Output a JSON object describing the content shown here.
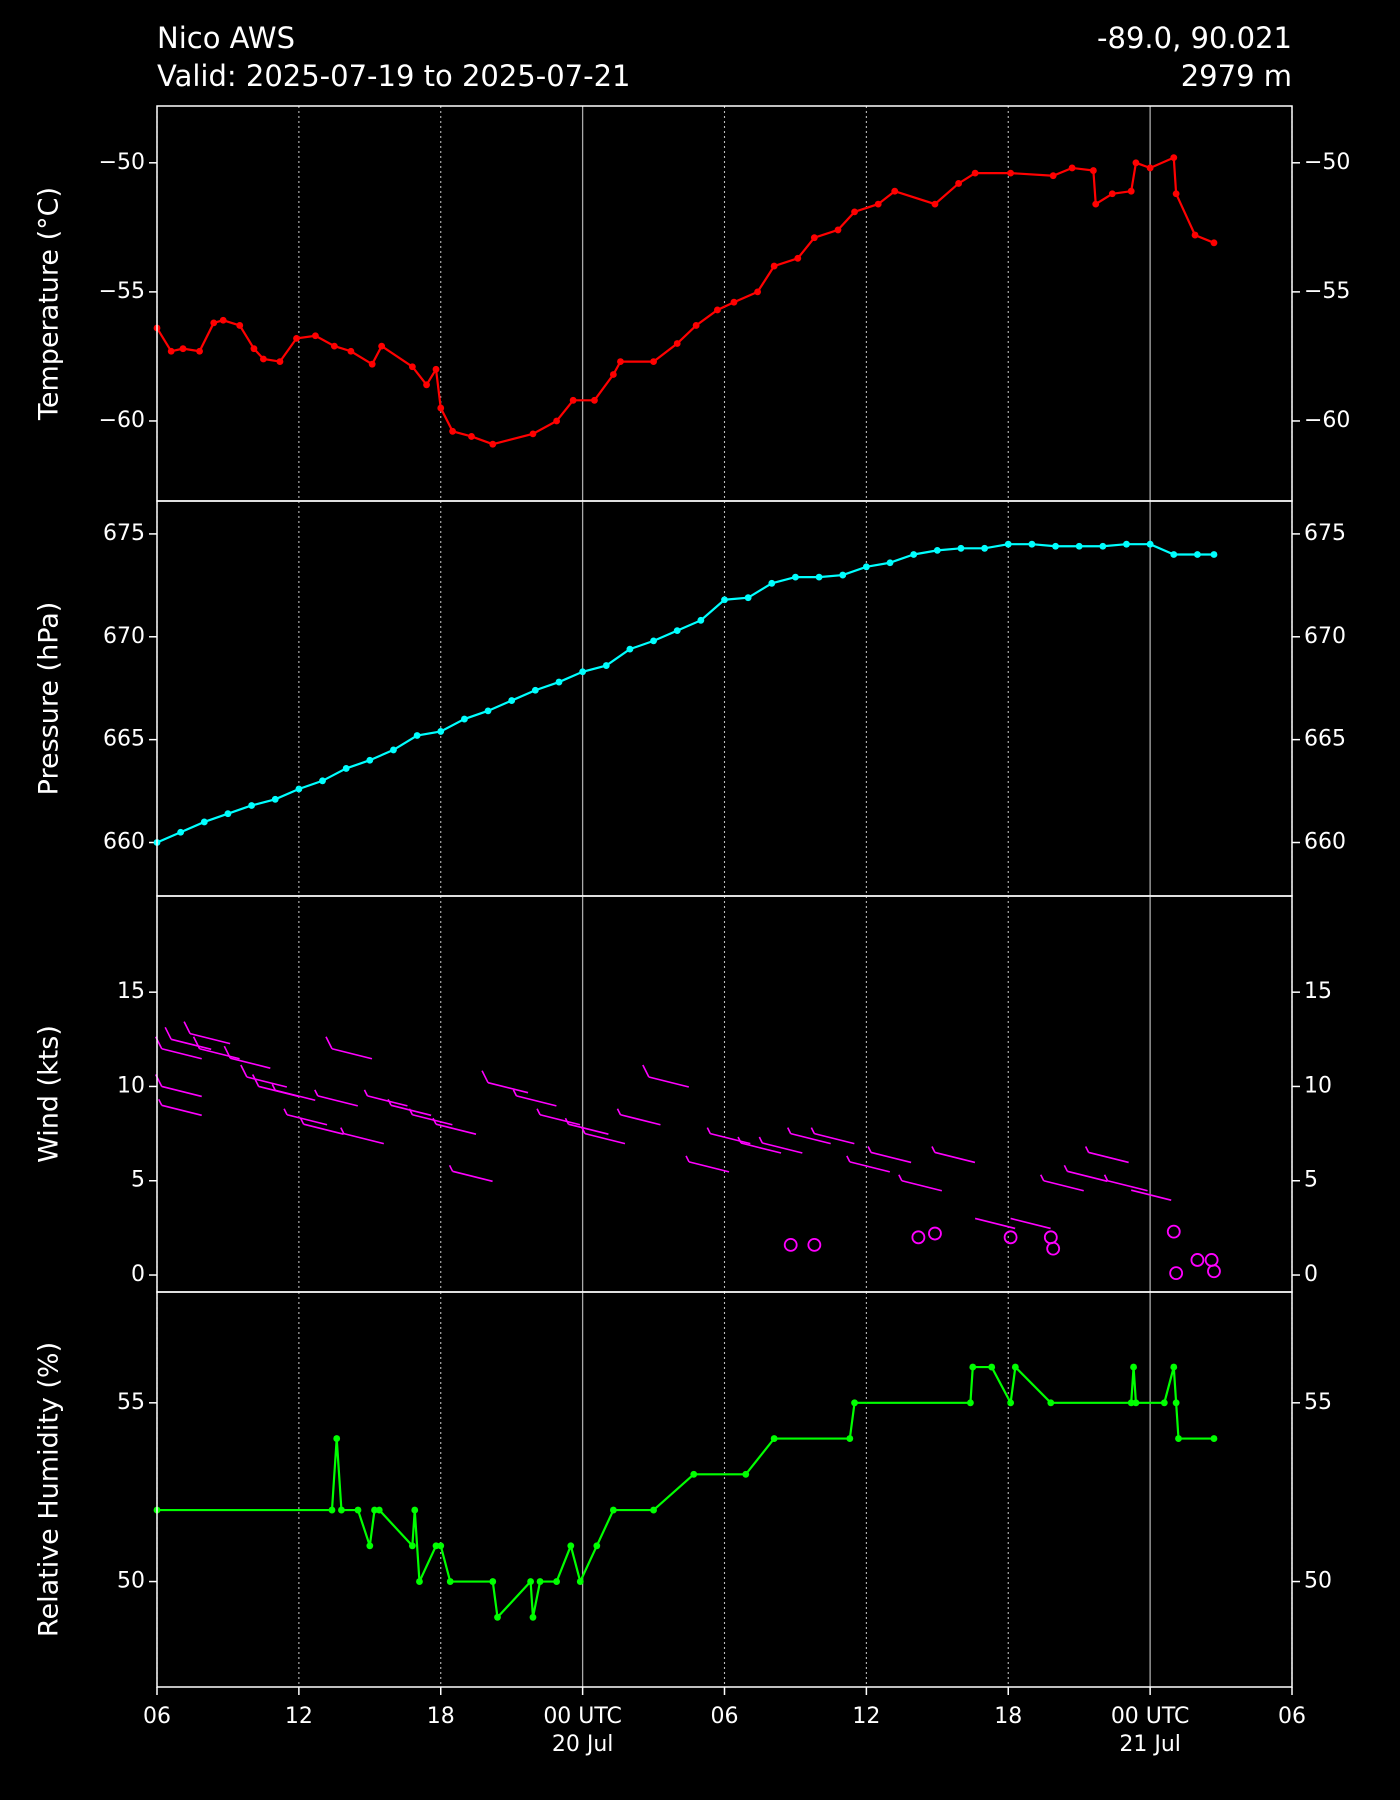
{
  "header": {
    "title": "Nico AWS",
    "subtitle": "Valid: 2025-07-19 to 2025-07-21",
    "location": "-89.0, 90.021",
    "elevation": "2979 m"
  },
  "x_axis": {
    "xlim": [
      0,
      48
    ],
    "grid": true,
    "xticks": [
      {
        "value": 0,
        "label": "06"
      },
      {
        "value": 6,
        "label": "12"
      },
      {
        "value": 12,
        "label": "18"
      },
      {
        "value": 18,
        "label": "00 UTC",
        "sublabel": "20 Jul"
      },
      {
        "value": 24,
        "label": "06"
      },
      {
        "value": 30,
        "label": "12"
      },
      {
        "value": 36,
        "label": "18"
      },
      {
        "value": 42,
        "label": "00 UTC",
        "sublabel": "21 Jul"
      },
      {
        "value": 48,
        "label": "06"
      }
    ]
  },
  "chart_data": [
    {
      "type": "line",
      "ylabel": "Temperature (°C)",
      "ylim": [
        -63.1,
        -47.8
      ],
      "yticks": [
        {
          "value": -60,
          "label": "−60"
        },
        {
          "value": -55,
          "label": "−55"
        },
        {
          "value": -50,
          "label": "−50"
        }
      ],
      "x": [
        0,
        0.6,
        1.1,
        1.8,
        2.4,
        2.8,
        3.5,
        4.1,
        4.5,
        5.2,
        5.9,
        6.7,
        7.5,
        8.2,
        9.1,
        9.5,
        10.8,
        11.4,
        11.8,
        12.0,
        12.5,
        13.3,
        14.2,
        15.9,
        16.9,
        17.6,
        18.5,
        19.3,
        19.6,
        21.0,
        22.0,
        22.8,
        23.7,
        24.4,
        25.4,
        26.1,
        27.1,
        27.8,
        28.8,
        29.5,
        30.5,
        31.2,
        32.9,
        33.9,
        34.6,
        36.1,
        37.9,
        38.7,
        39.6,
        39.7,
        40.4,
        41.2,
        41.4,
        42.0,
        43.0,
        43.1,
        43.9,
        44.7
      ],
      "series": [
        {
          "name": "Temperature",
          "color": "#ff0000",
          "values": [
            -56.4,
            -57.3,
            -57.2,
            -57.3,
            -56.2,
            -56.1,
            -56.3,
            -57.2,
            -57.6,
            -57.7,
            -56.8,
            -56.7,
            -57.1,
            -57.3,
            -57.8,
            -57.1,
            -57.9,
            -58.6,
            -58.0,
            -59.5,
            -60.4,
            -60.6,
            -60.9,
            -60.5,
            -60.0,
            -59.2,
            -59.2,
            -58.2,
            -57.7,
            -57.7,
            -57.0,
            -56.3,
            -55.7,
            -55.4,
            -55.0,
            -54.0,
            -53.7,
            -52.9,
            -52.6,
            -51.9,
            -51.6,
            -51.1,
            -51.6,
            -50.8,
            -50.4,
            -50.4,
            -50.5,
            -50.2,
            -50.3,
            -51.6,
            -51.2,
            -51.1,
            -50.0,
            -50.2,
            -49.8,
            -51.2,
            -52.8,
            -53.1
          ]
        }
      ]
    },
    {
      "type": "line",
      "ylabel": "Pressure (hPa)",
      "ylim": [
        657.4,
        676.6
      ],
      "yticks": [
        660,
        665,
        670,
        675
      ],
      "x": [
        0,
        1,
        2,
        3,
        4,
        5,
        6,
        7,
        8,
        9,
        10,
        11,
        12,
        13,
        14,
        15,
        16,
        17,
        18,
        19,
        20,
        21,
        22,
        23,
        24,
        25,
        26,
        27,
        28,
        29,
        30,
        31,
        32,
        33,
        34,
        35,
        36,
        37,
        38,
        39,
        40,
        41,
        42,
        43,
        44,
        44.7
      ],
      "series": [
        {
          "name": "Pressure",
          "color": "#00ffff",
          "values": [
            660.0,
            660.5,
            661.0,
            661.4,
            661.8,
            662.1,
            662.6,
            663.0,
            663.6,
            664.0,
            664.5,
            665.2,
            665.4,
            666.0,
            666.4,
            666.9,
            667.4,
            667.8,
            668.3,
            668.6,
            669.4,
            669.8,
            670.3,
            670.8,
            671.8,
            671.9,
            672.6,
            672.9,
            672.9,
            673.0,
            673.4,
            673.6,
            674.0,
            674.2,
            674.3,
            674.3,
            674.5,
            674.5,
            674.4,
            674.4,
            674.4,
            674.5,
            674.5,
            674.0,
            674.0,
            674.0
          ]
        }
      ]
    },
    {
      "type": "barbs",
      "ylabel": "Wind (kts)",
      "ylim": [
        -0.9,
        20.1
      ],
      "yticks": [
        0,
        5,
        10,
        15
      ],
      "x": [
        0.2,
        0.2,
        0.2,
        0.6,
        1.4,
        1.8,
        3.1,
        3.8,
        4.3,
        5.0,
        5.5,
        6.2,
        6.8,
        7.4,
        7.9,
        8.9,
        9.9,
        10.8,
        11.8,
        12.5,
        14.0,
        15.2,
        16.2,
        17.4,
        18.1,
        19.6,
        20.8,
        22.5,
        23.4,
        24.7,
        25.6,
        26.8,
        26.8,
        27.8,
        27.8,
        29.3,
        30.2,
        31.5,
        32.2,
        32.9,
        32.9,
        34.6,
        36.1,
        36.1,
        37.5,
        37.8,
        37.9,
        38.5,
        39.4,
        40.2,
        41.2,
        43.0,
        43.1,
        44.0,
        44.6,
        44.7
      ],
      "series": [
        {
          "name": "Wind",
          "color": "#ff00ff",
          "values": [
            9,
            10,
            12,
            12.5,
            12.8,
            12,
            11.5,
            10.5,
            10,
            9.8,
            8.5,
            8,
            9.5,
            12,
            7.5,
            9.5,
            9,
            8.5,
            8,
            5.5,
            10.2,
            9.5,
            8.5,
            8,
            7.5,
            8.5,
            10.5,
            6,
            7.5,
            7,
            7,
            1.6,
            7.5,
            1.6,
            7.5,
            6,
            6.5,
            5,
            2,
            2.2,
            6.5,
            3,
            2,
            3,
            5,
            2,
            1.4,
            5.5,
            6.5,
            5,
            4.5,
            2.3,
            0.1,
            0.8,
            0.8,
            0.2
          ]
        }
      ]
    },
    {
      "type": "line",
      "ylabel": "Relative Humidity (%)",
      "ylim": [
        47.05,
        58.1
      ],
      "yticks": [
        50,
        55
      ],
      "x": [
        0,
        7.4,
        7.6,
        7.8,
        8.5,
        9.0,
        9.2,
        9.4,
        10.8,
        10.9,
        11.1,
        11.8,
        12.0,
        12.4,
        14.2,
        14.4,
        15.8,
        15.9,
        16.2,
        16.9,
        17.5,
        17.9,
        18.6,
        19.3,
        21.0,
        22.7,
        24.9,
        26.1,
        29.3,
        29.5,
        34.4,
        34.5,
        35.3,
        36.1,
        36.3,
        37.8,
        41.2,
        41.3,
        41.4,
        42.6,
        43.0,
        43.1,
        43.2,
        44.7
      ],
      "series": [
        {
          "name": "Relative Humidity",
          "color": "#00ff00",
          "values": [
            52,
            52,
            54,
            52,
            52,
            51,
            52,
            52,
            51,
            52,
            50,
            51,
            51,
            50,
            50,
            49,
            50,
            49,
            50,
            50,
            51,
            50,
            51,
            52,
            52,
            53,
            53,
            54,
            54,
            55,
            55,
            56,
            56,
            55,
            56,
            55,
            55,
            56,
            55,
            55,
            56,
            55,
            54,
            54
          ]
        }
      ]
    }
  ]
}
